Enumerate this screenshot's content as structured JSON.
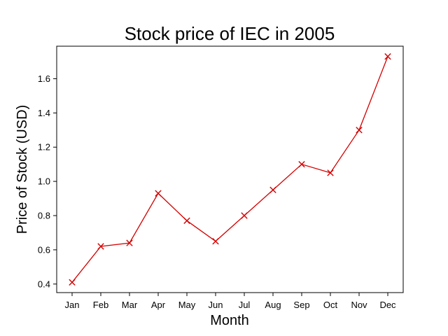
{
  "chart_data": {
    "type": "line",
    "title": "Stock price of IEC in 2005",
    "xlabel": "Month",
    "ylabel": "Price of Stock (USD)",
    "categories": [
      "Jan",
      "Feb",
      "Mar",
      "Apr",
      "May",
      "Jun",
      "Jul",
      "Aug",
      "Sep",
      "Oct",
      "Nov",
      "Dec"
    ],
    "series": [
      {
        "values": [
          0.41,
          0.62,
          0.64,
          0.93,
          0.77,
          0.65,
          0.8,
          0.95,
          1.1,
          1.05,
          1.3,
          1.73
        ],
        "color": "#d40000",
        "marker": "x"
      }
    ],
    "ylim": [
      0.35,
      1.79
    ],
    "yticks": [
      "0.4",
      "0.6",
      "0.8",
      "1.0",
      "1.2",
      "1.4",
      "1.6"
    ],
    "grid": false
  }
}
